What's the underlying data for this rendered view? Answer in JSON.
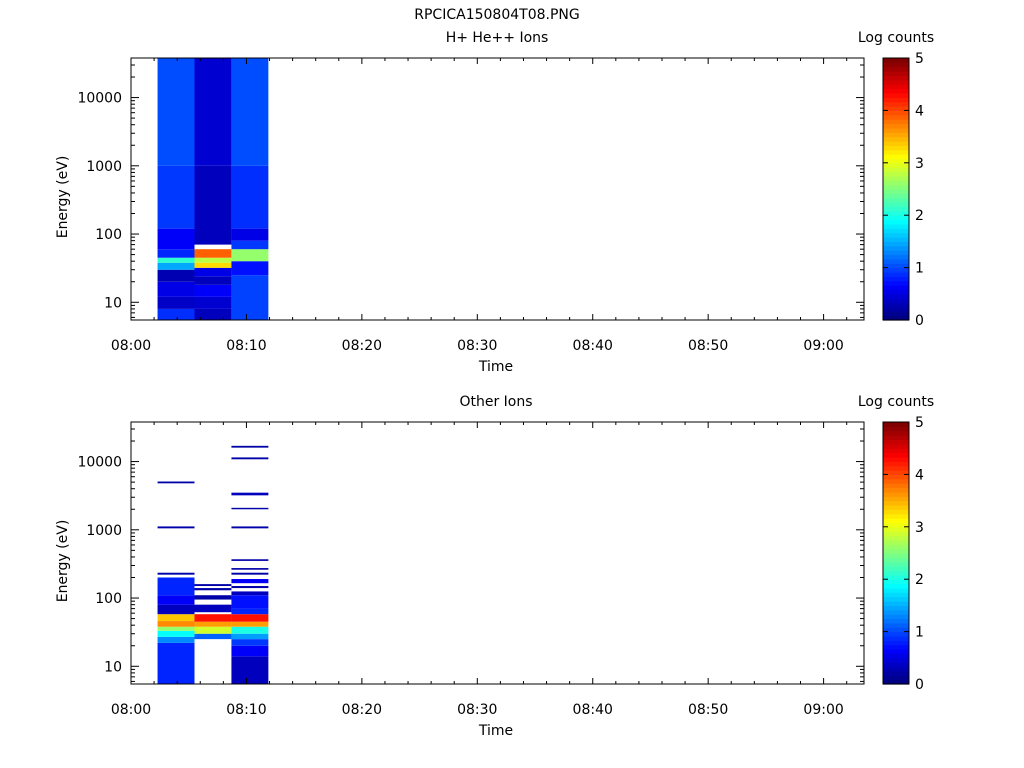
{
  "page_title": "RPCICA150804T08.PNG",
  "chart_data": [
    {
      "type": "heatmap",
      "title": "H+ He++ Ions",
      "xlabel": "Time",
      "ylabel": "Energy (eV)",
      "x_ticks": [
        "08:00",
        "08:10",
        "08:20",
        "08:30",
        "08:40",
        "08:50",
        "09:00"
      ],
      "xlim_minutes": [
        0,
        63.5
      ],
      "y_scale": "log",
      "ylim": [
        5.5,
        38000
      ],
      "y_ticks": [
        10,
        100,
        1000,
        10000
      ],
      "y_tick_labels": [
        "10",
        "100",
        "1000",
        "10000"
      ],
      "colorbar": {
        "label": "Log counts",
        "range": [
          0,
          5
        ],
        "ticks": [
          "0",
          "1",
          "2",
          "3",
          "4",
          "5"
        ]
      },
      "columns": [
        {
          "t_start": 2.3,
          "t_end": 5.5,
          "bins": [
            {
              "e_low": 5.5,
              "e_high": 8,
              "v": 0.85
            },
            {
              "e_low": 8,
              "e_high": 12,
              "v": 0.35
            },
            {
              "e_low": 12,
              "e_high": 20,
              "v": 0.5
            },
            {
              "e_low": 20,
              "e_high": 30,
              "v": 0.25
            },
            {
              "e_low": 30,
              "e_high": 38,
              "v": 1.45
            },
            {
              "e_low": 38,
              "e_high": 45,
              "v": 2.1
            },
            {
              "e_low": 45,
              "e_high": 60,
              "v": 0.8
            },
            {
              "e_low": 60,
              "e_high": 120,
              "v": 0.6
            },
            {
              "e_low": 120,
              "e_high": 1000,
              "v": 0.9
            },
            {
              "e_low": 1000,
              "e_high": 38000,
              "v": 1.0
            }
          ]
        },
        {
          "t_start": 5.5,
          "t_end": 8.7,
          "bins": [
            {
              "e_low": 5.5,
              "e_high": 8,
              "v": 0.3
            },
            {
              "e_low": 8,
              "e_high": 12,
              "v": 0.4
            },
            {
              "e_low": 12,
              "e_high": 18,
              "v": 0.6
            },
            {
              "e_low": 18,
              "e_high": 24,
              "v": 0.3
            },
            {
              "e_low": 24,
              "e_high": 32,
              "v": 0.5
            },
            {
              "e_low": 32,
              "e_high": 38,
              "v": 3.3
            },
            {
              "e_low": 38,
              "e_high": 45,
              "v": 2.8
            },
            {
              "e_low": 45,
              "e_high": 60,
              "v": 3.9
            },
            {
              "e_low": 70,
              "e_high": 1000,
              "v": 0.3
            },
            {
              "e_low": 1000,
              "e_high": 38000,
              "v": 0.4
            }
          ]
        },
        {
          "t_start": 8.7,
          "t_end": 11.9,
          "bins": [
            {
              "e_low": 5.5,
              "e_high": 25,
              "v": 0.95
            },
            {
              "e_low": 25,
              "e_high": 40,
              "v": 0.7
            },
            {
              "e_low": 40,
              "e_high": 60,
              "v": 2.6
            },
            {
              "e_low": 60,
              "e_high": 80,
              "v": 0.9
            },
            {
              "e_low": 80,
              "e_high": 120,
              "v": 0.5
            },
            {
              "e_low": 120,
              "e_high": 1000,
              "v": 0.85
            },
            {
              "e_low": 1000,
              "e_high": 38000,
              "v": 1.0
            }
          ]
        }
      ]
    },
    {
      "type": "heatmap",
      "title": "Other Ions",
      "xlabel": "Time",
      "ylabel": "Energy (eV)",
      "x_ticks": [
        "08:00",
        "08:10",
        "08:20",
        "08:30",
        "08:40",
        "08:50",
        "09:00"
      ],
      "xlim_minutes": [
        0,
        63.5
      ],
      "y_scale": "log",
      "ylim": [
        5.5,
        38000
      ],
      "y_ticks": [
        10,
        100,
        1000,
        10000
      ],
      "y_tick_labels": [
        "10",
        "100",
        "1000",
        "10000"
      ],
      "colorbar": {
        "label": "Log counts",
        "range": [
          0,
          5
        ],
        "ticks": [
          "0",
          "1",
          "2",
          "3",
          "4",
          "5"
        ]
      },
      "columns": [
        {
          "t_start": 2.3,
          "t_end": 5.5,
          "bins": [
            {
              "e_low": 5.5,
              "e_high": 22,
              "v": 0.8
            },
            {
              "e_low": 22,
              "e_high": 27,
              "v": 1.3
            },
            {
              "e_low": 27,
              "e_high": 33,
              "v": 1.9
            },
            {
              "e_low": 33,
              "e_high": 38,
              "v": 2.6
            },
            {
              "e_low": 38,
              "e_high": 46,
              "v": 3.7
            },
            {
              "e_low": 46,
              "e_high": 58,
              "v": 3.4
            },
            {
              "e_low": 58,
              "e_high": 80,
              "v": 0.3
            },
            {
              "e_low": 80,
              "e_high": 110,
              "v": 0.6
            },
            {
              "e_low": 110,
              "e_high": 200,
              "v": 0.8
            },
            {
              "e_low": 220,
              "e_high": 235,
              "v": 0.2
            },
            {
              "e_low": 1050,
              "e_high": 1120,
              "v": 0.2
            },
            {
              "e_low": 4800,
              "e_high": 5100,
              "v": 0.2
            }
          ]
        },
        {
          "t_start": 5.5,
          "t_end": 8.7,
          "bins": [
            {
              "e_low": 25,
              "e_high": 30,
              "v": 1.1
            },
            {
              "e_low": 30,
              "e_high": 38,
              "v": 2.9
            },
            {
              "e_low": 38,
              "e_high": 45,
              "v": 3.6
            },
            {
              "e_low": 45,
              "e_high": 58,
              "v": 4.3
            },
            {
              "e_low": 62,
              "e_high": 80,
              "v": 0.3
            },
            {
              "e_low": 95,
              "e_high": 110,
              "v": 0.2
            },
            {
              "e_low": 130,
              "e_high": 140,
              "v": 0.2
            },
            {
              "e_low": 150,
              "e_high": 160,
              "v": 0.2
            }
          ]
        },
        {
          "t_start": 8.7,
          "t_end": 11.9,
          "bins": [
            {
              "e_low": 5.5,
              "e_high": 14,
              "v": 0.3
            },
            {
              "e_low": 14,
              "e_high": 20,
              "v": 0.6
            },
            {
              "e_low": 20,
              "e_high": 25,
              "v": 0.9
            },
            {
              "e_low": 25,
              "e_high": 30,
              "v": 1.4
            },
            {
              "e_low": 30,
              "e_high": 38,
              "v": 2.0
            },
            {
              "e_low": 38,
              "e_high": 45,
              "v": 3.6
            },
            {
              "e_low": 45,
              "e_high": 58,
              "v": 4.3
            },
            {
              "e_low": 58,
              "e_high": 70,
              "v": 0.8
            },
            {
              "e_low": 70,
              "e_high": 110,
              "v": 0.7
            },
            {
              "e_low": 110,
              "e_high": 125,
              "v": 0.3
            },
            {
              "e_low": 140,
              "e_high": 150,
              "v": 0.2
            },
            {
              "e_low": 165,
              "e_high": 190,
              "v": 0.6
            },
            {
              "e_low": 220,
              "e_high": 235,
              "v": 0.2
            },
            {
              "e_low": 260,
              "e_high": 275,
              "v": 0.2
            },
            {
              "e_low": 350,
              "e_high": 370,
              "v": 0.2
            },
            {
              "e_low": 1050,
              "e_high": 1120,
              "v": 0.2
            },
            {
              "e_low": 2000,
              "e_high": 2100,
              "v": 0.2
            },
            {
              "e_low": 3200,
              "e_high": 3500,
              "v": 0.3
            },
            {
              "e_low": 10800,
              "e_high": 11500,
              "v": 0.2
            },
            {
              "e_low": 16000,
              "e_high": 17000,
              "v": 0.2
            }
          ]
        }
      ]
    }
  ]
}
